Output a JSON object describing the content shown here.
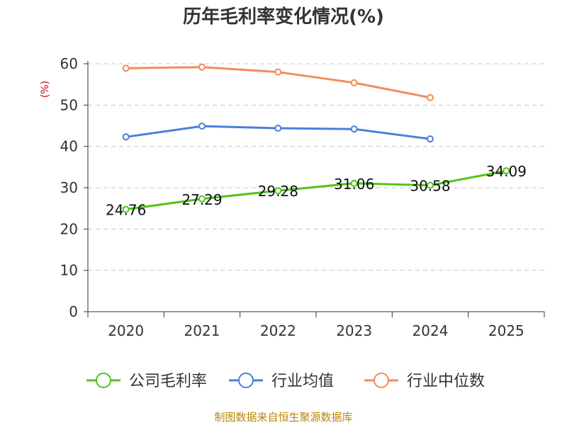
{
  "chart_data": {
    "type": "line",
    "title": "历年毛利率变化情况(%)",
    "ylabel": "(%)",
    "xlabel": "",
    "categories": [
      "2020",
      "2021",
      "2022",
      "2023",
      "2024",
      "2025"
    ],
    "ylim": [
      0,
      60
    ],
    "yticks": [
      0,
      10,
      20,
      30,
      40,
      50,
      60
    ],
    "grid": true,
    "legend_position": "bottom",
    "series": [
      {
        "name": "公司毛利率",
        "color": "#52c41a",
        "values": [
          24.76,
          27.29,
          29.28,
          31.06,
          30.58,
          34.09
        ],
        "labels": [
          "24.76",
          "27.29",
          "29.28",
          "31.06",
          "30.58",
          "34.09"
        ]
      },
      {
        "name": "行业均值",
        "color": "#4a7fdc",
        "values": [
          42.3,
          44.9,
          44.4,
          44.2,
          41.8,
          null
        ]
      },
      {
        "name": "行业中位数",
        "color": "#f28c5a",
        "values": [
          58.9,
          59.2,
          58.0,
          55.4,
          51.8,
          null
        ]
      }
    ],
    "source": "制图数据来自恒生聚源数据库"
  }
}
